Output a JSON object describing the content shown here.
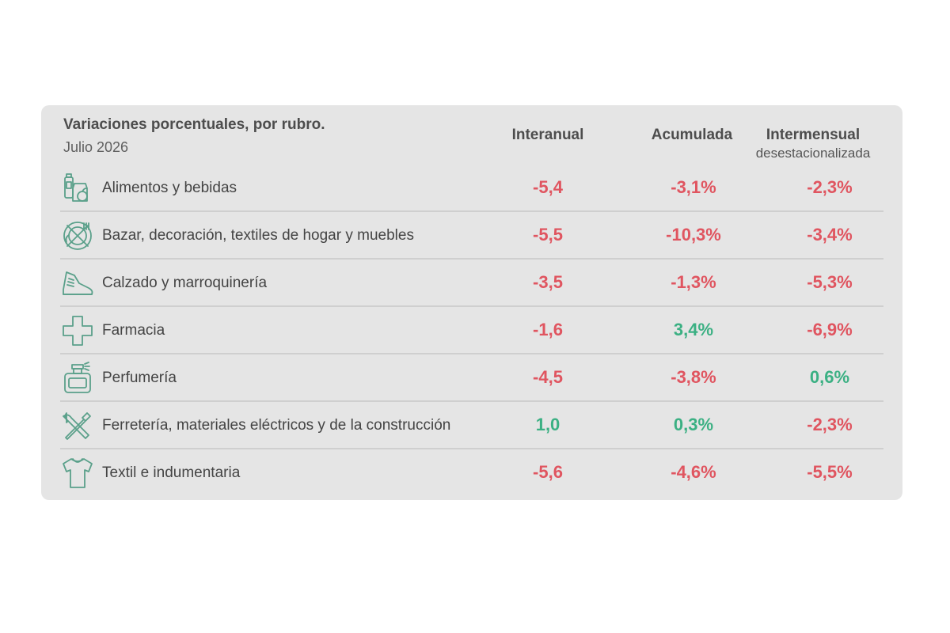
{
  "chart_data": {
    "type": "table",
    "title": "Variaciones porcentuales, por rubro.",
    "subtitle": "Julio 2026",
    "columns": [
      {
        "label": "Interanual",
        "sublabel": ""
      },
      {
        "label": "Acumulada",
        "sublabel": ""
      },
      {
        "label": "Intermensual",
        "sublabel": "desestacionalizada"
      }
    ],
    "rows": [
      {
        "icon": "grocery-icon",
        "label": "Alimentos y bebidas",
        "values": [
          "-5,4",
          "-3,1%",
          "-2,3%"
        ],
        "numeric": [
          -5.4,
          -3.1,
          -2.3
        ]
      },
      {
        "icon": "dining-icon",
        "label": "Bazar, decoración, textiles de hogar y muebles",
        "values": [
          "-5,5",
          "-10,3%",
          "-3,4%"
        ],
        "numeric": [
          -5.5,
          -10.3,
          -3.4
        ]
      },
      {
        "icon": "sneaker-icon",
        "label": "Calzado y marroquinería",
        "values": [
          "-3,5",
          "-1,3%",
          "-5,3%"
        ],
        "numeric": [
          -3.5,
          -1.3,
          -5.3
        ]
      },
      {
        "icon": "medical-cross-icon",
        "label": "Farmacia",
        "values": [
          "-1,6",
          "3,4%",
          "-6,9%"
        ],
        "numeric": [
          -1.6,
          3.4,
          -6.9
        ]
      },
      {
        "icon": "perfume-bottle-icon",
        "label": "Perfumería",
        "values": [
          "-4,5",
          "-3,8%",
          "0,6%"
        ],
        "numeric": [
          -4.5,
          -3.8,
          0.6
        ]
      },
      {
        "icon": "tools-icon",
        "label": "Ferretería, materiales eléctricos y de la construcción",
        "values": [
          "1,0",
          "0,3%",
          "-2,3%"
        ],
        "numeric": [
          1.0,
          0.3,
          -2.3
        ]
      },
      {
        "icon": "shirt-icon",
        "label": "Textil e indumentaria",
        "values": [
          "-5,6",
          "-4,6%",
          "-5,5%"
        ],
        "numeric": [
          -5.6,
          -4.6,
          -5.5
        ]
      }
    ]
  },
  "colors": {
    "negative": "#e05560",
    "positive": "#3bb083",
    "icon_stroke": "#5aa08a",
    "card_background": "#e5e5e5"
  }
}
